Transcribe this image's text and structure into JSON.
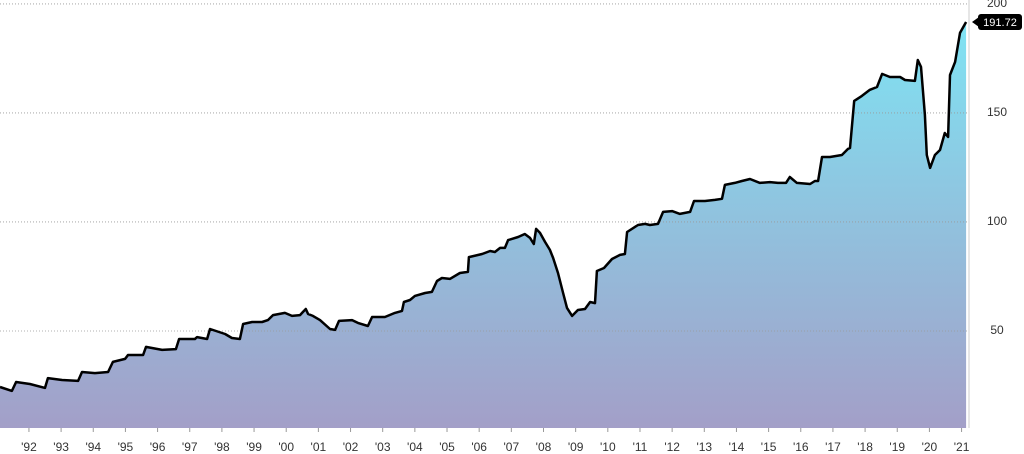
{
  "chart_data": {
    "type": "area",
    "x": [
      1991.1,
      1991.47,
      1991.6,
      1992.03,
      1992.5,
      1992.59,
      1993.03,
      1993.53,
      1993.65,
      1994.05,
      1994.46,
      1994.61,
      1994.99,
      1995.08,
      1995.55,
      1995.64,
      1996.14,
      1996.57,
      1996.67,
      1997.16,
      1997.23,
      1997.54,
      1997.63,
      1998.1,
      1998.31,
      1998.56,
      1998.66,
      1998.94,
      1999.25,
      1999.43,
      1999.59,
      1999.96,
      2000.18,
      2000.43,
      2000.52,
      2000.61,
      2000.68,
      2000.83,
      2001.05,
      2001.36,
      2001.52,
      2001.64,
      2002.05,
      2002.23,
      2002.54,
      2002.67,
      2003.07,
      2003.38,
      2003.6,
      2003.66,
      2003.85,
      2004.0,
      2004.32,
      2004.53,
      2004.69,
      2004.84,
      2005.09,
      2005.4,
      2005.65,
      2005.68,
      2006.09,
      2006.34,
      2006.49,
      2006.65,
      2006.8,
      2006.9,
      2007.21,
      2007.42,
      2007.58,
      2007.7,
      2007.77,
      2007.89,
      2008.05,
      2008.2,
      2008.3,
      2008.45,
      2008.61,
      2008.73,
      2008.89,
      2009.07,
      2009.29,
      2009.45,
      2009.6,
      2009.66,
      2009.88,
      2010.13,
      2010.38,
      2010.53,
      2010.6,
      2010.94,
      2011.16,
      2011.31,
      2011.56,
      2011.72,
      2012.0,
      2012.24,
      2012.56,
      2012.68,
      2013.02,
      2013.33,
      2013.55,
      2013.64,
      2013.95,
      2014.17,
      2014.42,
      2014.73,
      2015.04,
      2015.29,
      2015.54,
      2015.66,
      2015.88,
      2016.29,
      2016.44,
      2016.54,
      2016.66,
      2016.91,
      2017.28,
      2017.47,
      2017.53,
      2017.66,
      2017.9,
      2018.15,
      2018.37,
      2018.53,
      2018.77,
      2019.09,
      2019.24,
      2019.55,
      2019.64,
      2019.74,
      2019.86,
      2019.92,
      2020.02,
      2020.17,
      2020.33,
      2020.48,
      2020.58,
      2020.64,
      2020.8,
      2020.95,
      2021.14
    ],
    "values": [
      24.3,
      22.5,
      26.6,
      25.7,
      23.9,
      28.4,
      27.5,
      27.1,
      31.2,
      30.7,
      31.2,
      35.8,
      37.2,
      39,
      39,
      42.7,
      41.3,
      41.7,
      46.3,
      46.3,
      47.2,
      46.3,
      50.9,
      48.6,
      46.8,
      46.3,
      53.2,
      54.1,
      54.1,
      55,
      57.3,
      58.3,
      56.9,
      57.3,
      58.7,
      60.1,
      57.8,
      56.9,
      55,
      50.9,
      50.5,
      54.6,
      55,
      53.7,
      52.3,
      56.4,
      56.4,
      58.3,
      59.2,
      63.3,
      64.2,
      66.1,
      67.4,
      67.9,
      72.9,
      74.3,
      73.9,
      76.6,
      77.1,
      83.9,
      85.3,
      86.7,
      86.2,
      88.1,
      88.1,
      91.7,
      93.1,
      94.5,
      92.7,
      89.9,
      96.8,
      95,
      90.8,
      87.2,
      83.5,
      76.6,
      67.4,
      60.6,
      56.9,
      59.6,
      60.1,
      63.3,
      62.8,
      77.5,
      78.9,
      83,
      84.9,
      85.3,
      95.4,
      98.6,
      99.1,
      98.6,
      99.1,
      104.6,
      105,
      103.7,
      104.6,
      109.6,
      109.6,
      110.1,
      110.6,
      117,
      117.9,
      118.8,
      119.7,
      117.9,
      118.3,
      117.9,
      117.9,
      120.6,
      117.9,
      117.4,
      118.8,
      118.8,
      129.8,
      129.8,
      130.7,
      133.5,
      133.9,
      155.5,
      157.8,
      160.6,
      161.9,
      167.9,
      166.5,
      166.5,
      165.1,
      164.7,
      174.3,
      171.1,
      149.1,
      130.7,
      124.8,
      130.7,
      133,
      140.8,
      139,
      167.4,
      173.4,
      186.7,
      191.72
    ],
    "color": "#000000",
    "gradient": [
      "#7fe3f3",
      "#a39fc8"
    ],
    "xlim": [
      1991.1,
      2021.2
    ],
    "ylim": [
      5.5,
      201.8
    ],
    "xticks": [
      {
        "value": 1992,
        "label": "'92"
      },
      {
        "value": 1993,
        "label": "'93"
      },
      {
        "value": 1994,
        "label": "'94"
      },
      {
        "value": 1995,
        "label": "'95"
      },
      {
        "value": 1996,
        "label": "'96"
      },
      {
        "value": 1997,
        "label": "'97"
      },
      {
        "value": 1998,
        "label": "'98"
      },
      {
        "value": 1999,
        "label": "'99"
      },
      {
        "value": 2000,
        "label": "'00"
      },
      {
        "value": 2001,
        "label": "'01"
      },
      {
        "value": 2002,
        "label": "'02"
      },
      {
        "value": 2003,
        "label": "'03"
      },
      {
        "value": 2004,
        "label": "'04"
      },
      {
        "value": 2005,
        "label": "'05"
      },
      {
        "value": 2006,
        "label": "'06"
      },
      {
        "value": 2007,
        "label": "'07"
      },
      {
        "value": 2008,
        "label": "'08"
      },
      {
        "value": 2009,
        "label": "'09"
      },
      {
        "value": 2010,
        "label": "'10"
      },
      {
        "value": 2011,
        "label": "'11"
      },
      {
        "value": 2012,
        "label": "'12"
      },
      {
        "value": 2013,
        "label": "'13"
      },
      {
        "value": 2014,
        "label": "'14"
      },
      {
        "value": 2015,
        "label": "'15"
      },
      {
        "value": 2016,
        "label": "'16"
      },
      {
        "value": 2017,
        "label": "'17"
      },
      {
        "value": 2018,
        "label": "'18"
      },
      {
        "value": 2019,
        "label": "'19"
      },
      {
        "value": 2020,
        "label": "'20"
      },
      {
        "value": 2021,
        "label": "'21"
      }
    ],
    "yticks": [
      50,
      100,
      150,
      200
    ],
    "grid": true
  }
}
